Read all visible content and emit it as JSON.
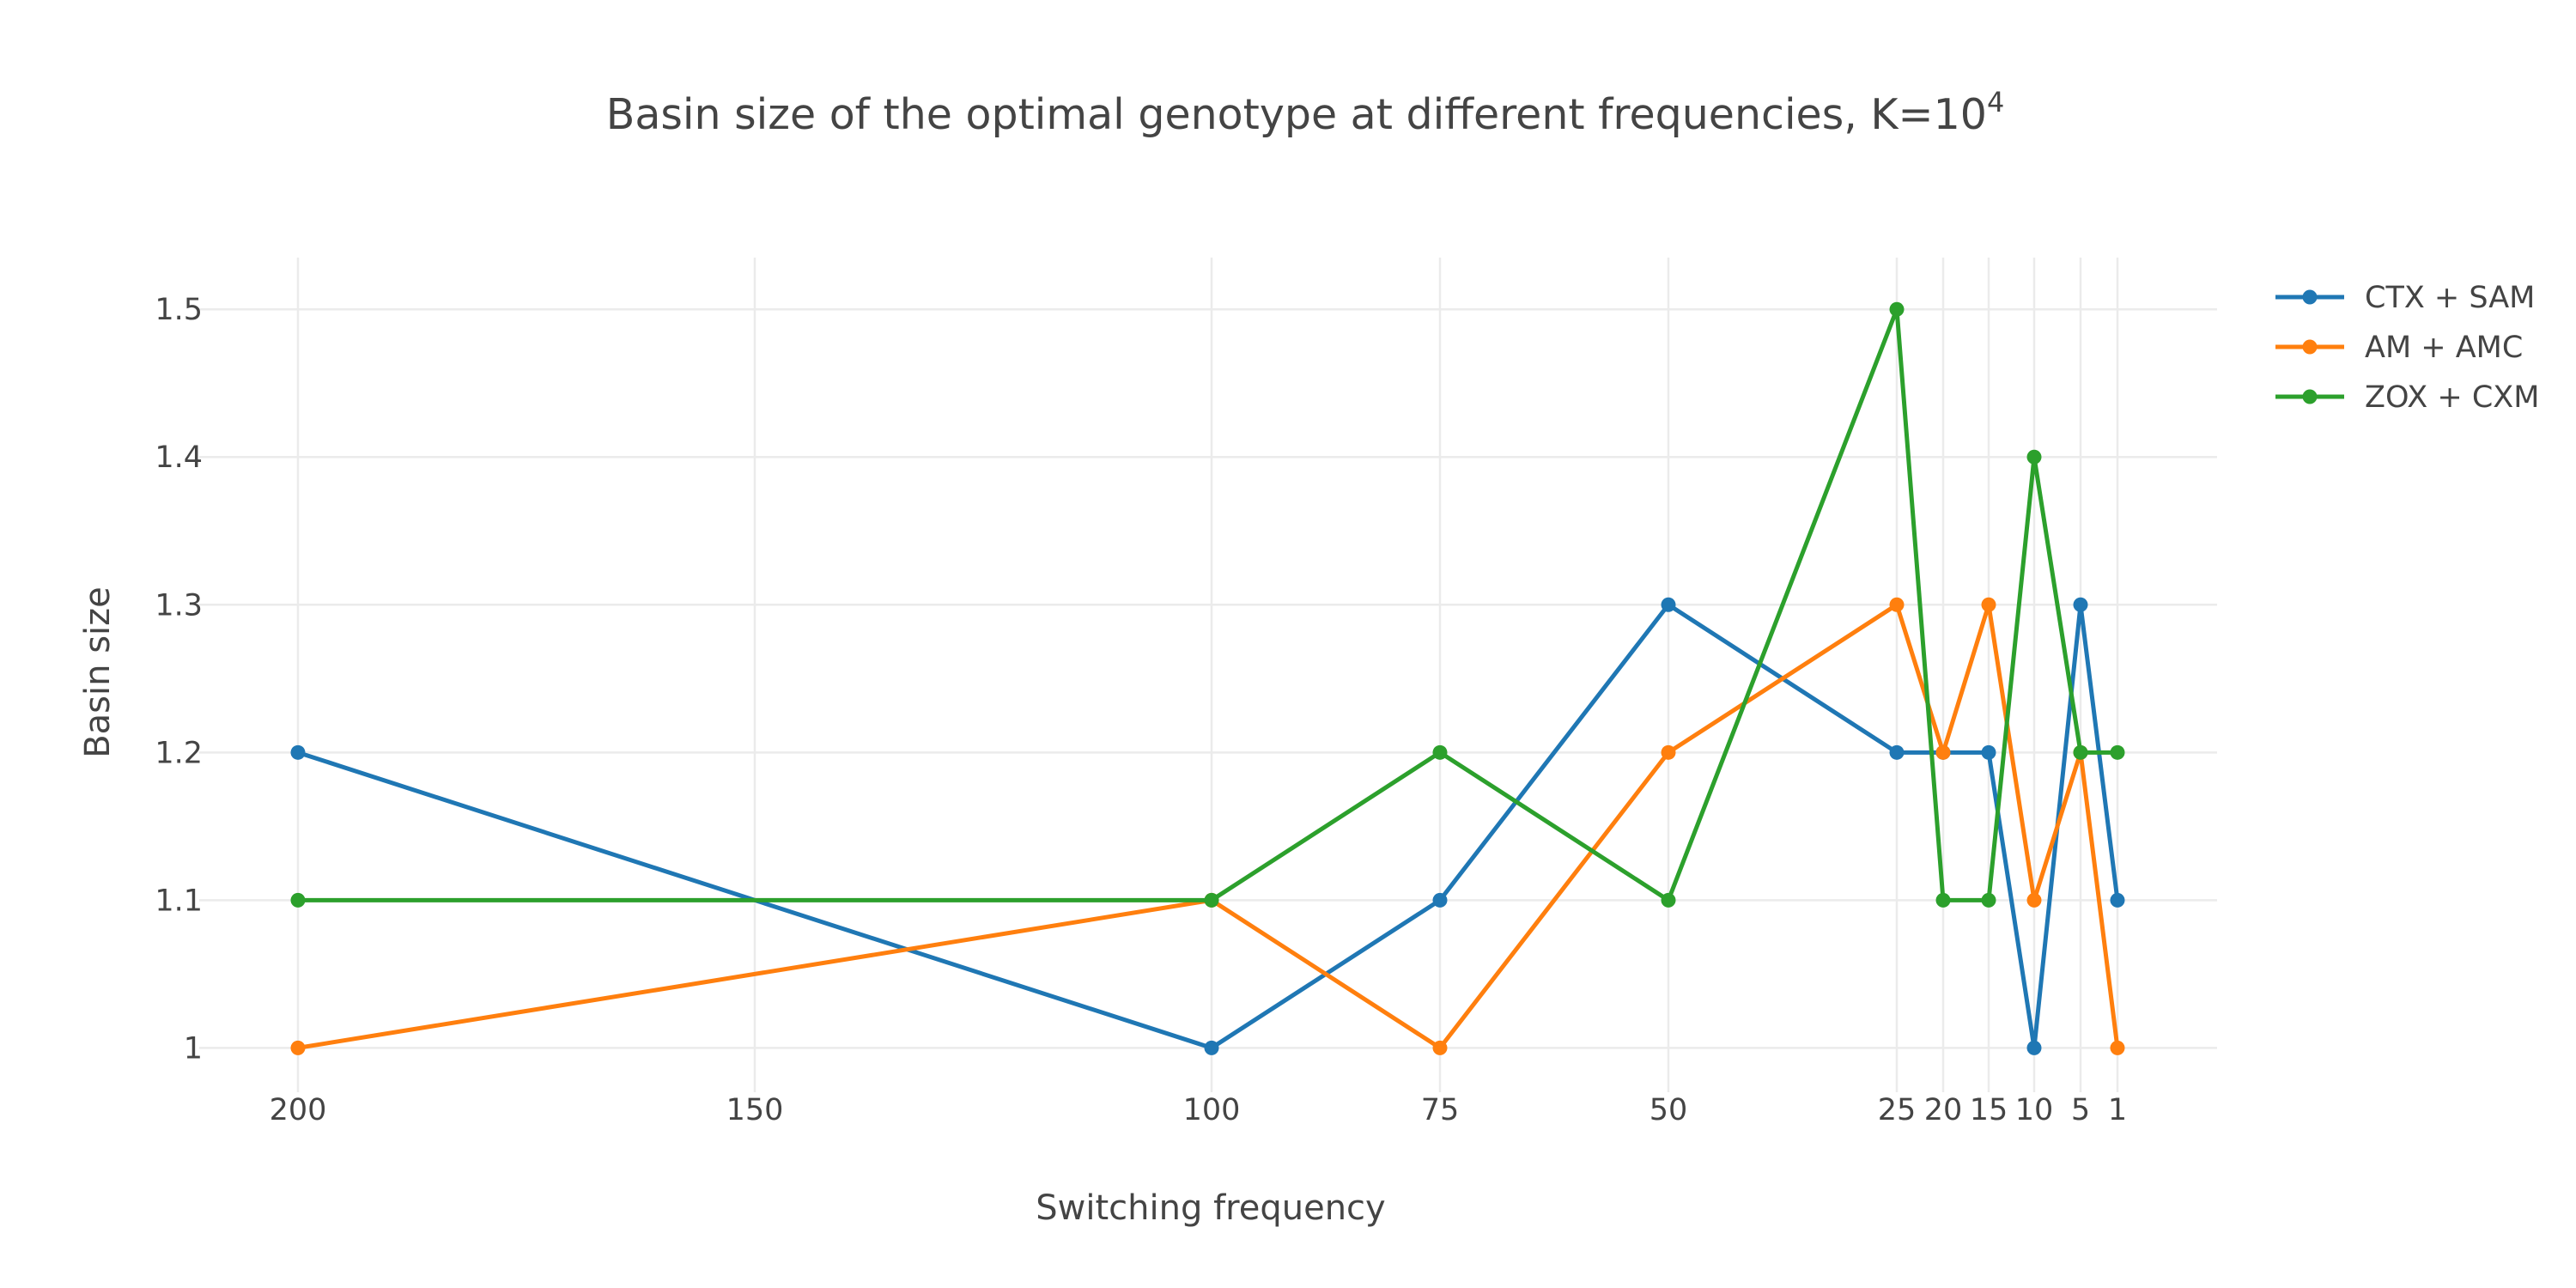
{
  "chart_data": {
    "type": "line",
    "title": "Basin size of the optimal genotype at different frequencies, K=10",
    "title_superscript": "4",
    "xlabel": "Switching frequency",
    "ylabel": "Basin size",
    "x": [
      "200",
      "100",
      "75",
      "50",
      "25",
      "20",
      "15",
      "10",
      "5",
      "1"
    ],
    "x_tick_labels": [
      "200",
      "150",
      "100",
      "75",
      "50",
      "25",
      "20",
      "15",
      "10",
      "5",
      "1"
    ],
    "x_reversed": true,
    "y_ticks": [
      1,
      1.1,
      1.2,
      1.3,
      1.4,
      1.5
    ],
    "y_tick_labels": [
      "1",
      "1.1",
      "1.2",
      "1.3",
      "1.4",
      "1.5"
    ],
    "ylim": [
      0.97,
      1.535
    ],
    "grid": true,
    "legend_position": "top-right",
    "series": [
      {
        "name": "CTX + SAM",
        "color": "#1f77b4",
        "values": [
          1.2,
          1.0,
          1.1,
          1.3,
          1.2,
          1.2,
          1.2,
          1.0,
          1.3,
          1.1
        ]
      },
      {
        "name": "AM + AMC",
        "color": "#ff7f0e",
        "values": [
          1.0,
          1.1,
          1.0,
          1.2,
          1.3,
          1.2,
          1.3,
          1.1,
          1.2,
          1.0
        ]
      },
      {
        "name": "ZOX + CXM",
        "color": "#2ca02c",
        "values": [
          1.1,
          1.1,
          1.2,
          1.1,
          1.5,
          1.1,
          1.1,
          1.4,
          1.2,
          1.2
        ]
      }
    ]
  }
}
